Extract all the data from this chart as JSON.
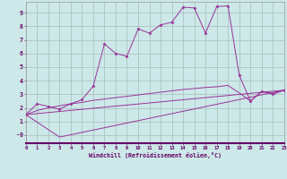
{
  "bg_color": "#cce8e8",
  "grid_color": "#aabbbb",
  "line_color": "#993399",
  "xlim": [
    0,
    23
  ],
  "ylim": [
    -0.6,
    9.8
  ],
  "xticks": [
    0,
    1,
    2,
    3,
    4,
    5,
    6,
    7,
    8,
    9,
    10,
    11,
    12,
    13,
    14,
    15,
    16,
    17,
    18,
    19,
    20,
    21,
    22,
    23
  ],
  "yticks": [
    0,
    1,
    2,
    3,
    4,
    5,
    6,
    7,
    8,
    9
  ],
  "ytick_labels": [
    "-0",
    "1",
    "2",
    "3",
    "4",
    "5",
    "6",
    "7",
    "8",
    "9"
  ],
  "xlabel": "Windchill (Refroidissement éolien,°C)",
  "curve1_x": [
    0,
    1,
    2,
    3,
    4,
    5,
    6,
    7,
    8,
    9,
    10,
    11,
    12,
    13,
    14,
    15,
    16,
    17,
    18,
    19,
    20,
    21,
    22,
    23
  ],
  "curve1_y": [
    1.5,
    2.3,
    2.1,
    1.9,
    2.3,
    2.6,
    3.6,
    6.7,
    6.0,
    5.8,
    7.8,
    7.5,
    8.1,
    8.3,
    9.4,
    9.35,
    7.5,
    9.45,
    9.5,
    4.4,
    2.5,
    3.2,
    3.0,
    3.3
  ],
  "curve2_x": [
    0,
    1,
    2,
    3,
    4,
    5,
    6,
    7,
    8,
    9,
    10,
    11,
    12,
    13,
    14,
    15,
    16,
    17,
    18,
    19,
    20,
    21,
    22,
    23
  ],
  "curve2_y": [
    1.5,
    1.8,
    2.0,
    2.15,
    2.3,
    2.4,
    2.55,
    2.65,
    2.75,
    2.85,
    2.95,
    3.05,
    3.15,
    3.25,
    3.35,
    3.42,
    3.5,
    3.55,
    3.65,
    3.1,
    2.5,
    3.2,
    3.05,
    3.3
  ],
  "curve3_x": [
    0,
    3,
    23
  ],
  "curve3_y": [
    1.5,
    -0.15,
    3.3
  ],
  "curve4_x": [
    0,
    23
  ],
  "curve4_y": [
    1.5,
    3.3
  ]
}
